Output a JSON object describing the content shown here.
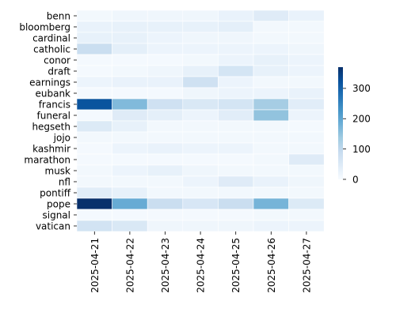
{
  "chart_data": {
    "type": "heatmap",
    "title": "",
    "xlabel": "",
    "ylabel": "",
    "x_categories": [
      "2025-04-21",
      "2025-04-22",
      "2025-04-23",
      "2025-04-24",
      "2025-04-25",
      "2025-04-26",
      "2025-04-27"
    ],
    "y_categories": [
      "benn",
      "bloomberg",
      "cardinal",
      "catholic",
      "conor",
      "draft",
      "earnings",
      "eubank",
      "francis",
      "funeral",
      "hegseth",
      "jojo",
      "kashmir",
      "marathon",
      "musk",
      "nfl",
      "pontiff",
      "pope",
      "signal",
      "vatican"
    ],
    "values": [
      [
        10,
        15,
        15,
        15,
        25,
        45,
        25
      ],
      [
        25,
        30,
        30,
        30,
        35,
        10,
        10
      ],
      [
        30,
        30,
        20,
        15,
        15,
        10,
        10
      ],
      [
        85,
        35,
        20,
        20,
        20,
        20,
        15
      ],
      [
        5,
        5,
        5,
        10,
        20,
        30,
        20
      ],
      [
        5,
        10,
        15,
        30,
        65,
        30,
        20
      ],
      [
        20,
        25,
        25,
        75,
        20,
        10,
        10
      ],
      [
        5,
        5,
        5,
        15,
        20,
        20,
        25
      ],
      [
        320,
        165,
        75,
        55,
        65,
        130,
        40
      ],
      [
        5,
        45,
        35,
        20,
        40,
        150,
        20
      ],
      [
        50,
        30,
        10,
        10,
        10,
        10,
        5
      ],
      [
        10,
        10,
        10,
        10,
        10,
        10,
        10
      ],
      [
        5,
        20,
        25,
        20,
        20,
        10,
        10
      ],
      [
        5,
        5,
        5,
        5,
        5,
        10,
        45
      ],
      [
        10,
        20,
        30,
        15,
        10,
        10,
        10
      ],
      [
        10,
        10,
        10,
        20,
        45,
        25,
        15
      ],
      [
        40,
        30,
        10,
        10,
        10,
        10,
        10
      ],
      [
        370,
        190,
        85,
        60,
        85,
        175,
        50
      ],
      [
        5,
        5,
        5,
        5,
        5,
        10,
        10
      ],
      [
        70,
        55,
        15,
        15,
        15,
        20,
        20
      ]
    ],
    "colorbar": {
      "min": 0,
      "max": 370,
      "ticks": [
        0,
        100,
        200,
        300
      ],
      "colormap": "Blues"
    },
    "grid": false,
    "legend": "colorbar-right"
  }
}
